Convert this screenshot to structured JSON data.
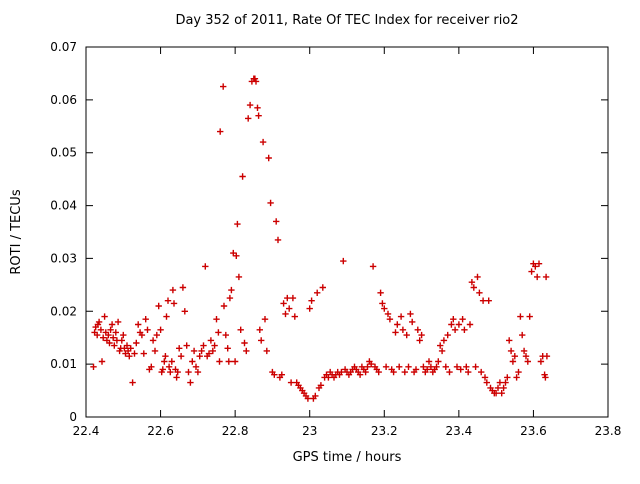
{
  "chart_data": {
    "type": "scatter",
    "title": "Day 352 of 2011, Rate Of TEC Index for receiver rio2",
    "xlabel": "GPS time / hours",
    "ylabel": "ROTI / TECUs",
    "xlim": [
      22.4,
      23.8
    ],
    "ylim": [
      0,
      0.07
    ],
    "x_ticks": [
      {
        "value": 22.4,
        "label": "22.4"
      },
      {
        "value": 22.6,
        "label": "22.6"
      },
      {
        "value": 22.8,
        "label": "22.8"
      },
      {
        "value": 23.0,
        "label": "23"
      },
      {
        "value": 23.2,
        "label": "23.2"
      },
      {
        "value": 23.4,
        "label": "23.4"
      },
      {
        "value": 23.6,
        "label": "23.6"
      },
      {
        "value": 23.8,
        "label": "23.8"
      }
    ],
    "y_ticks": [
      {
        "value": 0.0,
        "label": "0"
      },
      {
        "value": 0.01,
        "label": "0.01"
      },
      {
        "value": 0.02,
        "label": "0.02"
      },
      {
        "value": 0.03,
        "label": "0.03"
      },
      {
        "value": 0.04,
        "label": "0.04"
      },
      {
        "value": 0.05,
        "label": "0.05"
      },
      {
        "value": 0.06,
        "label": "0.06"
      },
      {
        "value": 0.07,
        "label": "0.07"
      }
    ],
    "grid": false,
    "legend": "none",
    "marker": "plus",
    "marker_color": "#cc0000",
    "border_color": "#000000",
    "points": [
      [
        22.42,
        0.0095
      ],
      [
        22.423,
        0.016
      ],
      [
        22.426,
        0.017
      ],
      [
        22.43,
        0.0155
      ],
      [
        22.432,
        0.0175
      ],
      [
        22.435,
        0.018
      ],
      [
        22.44,
        0.0165
      ],
      [
        22.443,
        0.0105
      ],
      [
        22.446,
        0.015
      ],
      [
        22.45,
        0.019
      ],
      [
        22.453,
        0.016
      ],
      [
        22.456,
        0.0145
      ],
      [
        22.46,
        0.0155
      ],
      [
        22.463,
        0.014
      ],
      [
        22.466,
        0.0165
      ],
      [
        22.47,
        0.0175
      ],
      [
        22.473,
        0.015
      ],
      [
        22.476,
        0.0135
      ],
      [
        22.48,
        0.016
      ],
      [
        22.483,
        0.0145
      ],
      [
        22.486,
        0.018
      ],
      [
        22.49,
        0.0125
      ],
      [
        22.493,
        0.013
      ],
      [
        22.496,
        0.0145
      ],
      [
        22.5,
        0.0155
      ],
      [
        22.503,
        0.013
      ],
      [
        22.506,
        0.012
      ],
      [
        22.51,
        0.0135
      ],
      [
        22.513,
        0.0125
      ],
      [
        22.516,
        0.0115
      ],
      [
        22.52,
        0.013
      ],
      [
        22.525,
        0.0065
      ],
      [
        22.53,
        0.012
      ],
      [
        22.535,
        0.014
      ],
      [
        22.54,
        0.0175
      ],
      [
        22.545,
        0.016
      ],
      [
        22.55,
        0.0155
      ],
      [
        22.555,
        0.012
      ],
      [
        22.56,
        0.0185
      ],
      [
        22.565,
        0.0165
      ],
      [
        22.57,
        0.009
      ],
      [
        22.575,
        0.0095
      ],
      [
        22.58,
        0.0145
      ],
      [
        22.585,
        0.0125
      ],
      [
        22.59,
        0.0155
      ],
      [
        22.595,
        0.021
      ],
      [
        22.6,
        0.0165
      ],
      [
        22.603,
        0.0085
      ],
      [
        22.606,
        0.009
      ],
      [
        22.61,
        0.0105
      ],
      [
        22.613,
        0.0115
      ],
      [
        22.616,
        0.019
      ],
      [
        22.62,
        0.022
      ],
      [
        22.623,
        0.0095
      ],
      [
        22.626,
        0.0085
      ],
      [
        22.63,
        0.0105
      ],
      [
        22.633,
        0.024
      ],
      [
        22.636,
        0.0215
      ],
      [
        22.64,
        0.009
      ],
      [
        22.643,
        0.0075
      ],
      [
        22.646,
        0.0085
      ],
      [
        22.65,
        0.013
      ],
      [
        22.655,
        0.0115
      ],
      [
        22.66,
        0.0245
      ],
      [
        22.665,
        0.02
      ],
      [
        22.67,
        0.0135
      ],
      [
        22.675,
        0.0085
      ],
      [
        22.68,
        0.0065
      ],
      [
        22.685,
        0.0105
      ],
      [
        22.69,
        0.0125
      ],
      [
        22.695,
        0.0095
      ],
      [
        22.7,
        0.0085
      ],
      [
        22.705,
        0.0115
      ],
      [
        22.71,
        0.0125
      ],
      [
        22.715,
        0.0135
      ],
      [
        22.72,
        0.0285
      ],
      [
        22.725,
        0.0115
      ],
      [
        22.73,
        0.012
      ],
      [
        22.735,
        0.0145
      ],
      [
        22.74,
        0.0125
      ],
      [
        22.745,
        0.0135
      ],
      [
        22.75,
        0.0185
      ],
      [
        22.755,
        0.016
      ],
      [
        22.758,
        0.0105
      ],
      [
        22.76,
        0.054
      ],
      [
        22.768,
        0.0625
      ],
      [
        22.77,
        0.021
      ],
      [
        22.775,
        0.0155
      ],
      [
        22.78,
        0.013
      ],
      [
        22.783,
        0.0105
      ],
      [
        22.786,
        0.0225
      ],
      [
        22.79,
        0.024
      ],
      [
        22.795,
        0.031
      ],
      [
        22.8,
        0.0105
      ],
      [
        22.803,
        0.0305
      ],
      [
        22.806,
        0.0365
      ],
      [
        22.81,
        0.0265
      ],
      [
        22.815,
        0.0165
      ],
      [
        22.82,
        0.0455
      ],
      [
        22.825,
        0.014
      ],
      [
        22.83,
        0.0125
      ],
      [
        22.835,
        0.0565
      ],
      [
        22.84,
        0.059
      ],
      [
        22.845,
        0.0635
      ],
      [
        22.85,
        0.064
      ],
      [
        22.853,
        0.064
      ],
      [
        22.856,
        0.0635
      ],
      [
        22.86,
        0.0585
      ],
      [
        22.863,
        0.057
      ],
      [
        22.866,
        0.0165
      ],
      [
        22.87,
        0.0145
      ],
      [
        22.875,
        0.052
      ],
      [
        22.88,
        0.0185
      ],
      [
        22.885,
        0.0125
      ],
      [
        22.89,
        0.049
      ],
      [
        22.895,
        0.0405
      ],
      [
        22.9,
        0.0085
      ],
      [
        22.905,
        0.008
      ],
      [
        22.91,
        0.037
      ],
      [
        22.915,
        0.0335
      ],
      [
        22.92,
        0.0075
      ],
      [
        22.925,
        0.008
      ],
      [
        22.93,
        0.0215
      ],
      [
        22.935,
        0.0195
      ],
      [
        22.94,
        0.0225
      ],
      [
        22.945,
        0.0205
      ],
      [
        22.95,
        0.0065
      ],
      [
        22.955,
        0.0225
      ],
      [
        22.96,
        0.019
      ],
      [
        22.965,
        0.0065
      ],
      [
        22.97,
        0.006
      ],
      [
        22.975,
        0.0055
      ],
      [
        22.98,
        0.005
      ],
      [
        22.985,
        0.0045
      ],
      [
        22.99,
        0.004
      ],
      [
        22.995,
        0.0035
      ],
      [
        23.0,
        0.0205
      ],
      [
        23.005,
        0.022
      ],
      [
        23.01,
        0.0035
      ],
      [
        23.015,
        0.004
      ],
      [
        23.02,
        0.0235
      ],
      [
        23.025,
        0.0055
      ],
      [
        23.03,
        0.006
      ],
      [
        23.035,
        0.0245
      ],
      [
        23.04,
        0.0075
      ],
      [
        23.045,
        0.008
      ],
      [
        23.05,
        0.0075
      ],
      [
        23.055,
        0.0085
      ],
      [
        23.06,
        0.008
      ],
      [
        23.065,
        0.0075
      ],
      [
        23.07,
        0.008
      ],
      [
        23.075,
        0.0085
      ],
      [
        23.08,
        0.008
      ],
      [
        23.085,
        0.0085
      ],
      [
        23.09,
        0.0295
      ],
      [
        23.095,
        0.009
      ],
      [
        23.1,
        0.0085
      ],
      [
        23.105,
        0.008
      ],
      [
        23.11,
        0.0085
      ],
      [
        23.115,
        0.009
      ],
      [
        23.12,
        0.0095
      ],
      [
        23.125,
        0.009
      ],
      [
        23.13,
        0.0085
      ],
      [
        23.135,
        0.008
      ],
      [
        23.14,
        0.0095
      ],
      [
        23.145,
        0.009
      ],
      [
        23.15,
        0.0085
      ],
      [
        23.155,
        0.0095
      ],
      [
        23.16,
        0.0105
      ],
      [
        23.165,
        0.01
      ],
      [
        23.17,
        0.0285
      ],
      [
        23.175,
        0.0095
      ],
      [
        23.18,
        0.009
      ],
      [
        23.185,
        0.0085
      ],
      [
        23.19,
        0.0235
      ],
      [
        23.195,
        0.0215
      ],
      [
        23.2,
        0.0205
      ],
      [
        23.205,
        0.0095
      ],
      [
        23.21,
        0.0195
      ],
      [
        23.215,
        0.0185
      ],
      [
        23.22,
        0.009
      ],
      [
        23.225,
        0.0085
      ],
      [
        23.23,
        0.016
      ],
      [
        23.235,
        0.0175
      ],
      [
        23.24,
        0.0095
      ],
      [
        23.245,
        0.019
      ],
      [
        23.25,
        0.0165
      ],
      [
        23.255,
        0.0085
      ],
      [
        23.26,
        0.0155
      ],
      [
        23.265,
        0.0095
      ],
      [
        23.27,
        0.0195
      ],
      [
        23.275,
        0.018
      ],
      [
        23.28,
        0.0085
      ],
      [
        23.285,
        0.009
      ],
      [
        23.29,
        0.0165
      ],
      [
        23.295,
        0.0145
      ],
      [
        23.3,
        0.0155
      ],
      [
        23.305,
        0.0095
      ],
      [
        23.31,
        0.0085
      ],
      [
        23.315,
        0.009
      ],
      [
        23.32,
        0.0105
      ],
      [
        23.325,
        0.0095
      ],
      [
        23.33,
        0.0085
      ],
      [
        23.335,
        0.009
      ],
      [
        23.34,
        0.0095
      ],
      [
        23.345,
        0.0105
      ],
      [
        23.35,
        0.0135
      ],
      [
        23.355,
        0.0125
      ],
      [
        23.36,
        0.0145
      ],
      [
        23.365,
        0.0095
      ],
      [
        23.37,
        0.0155
      ],
      [
        23.375,
        0.0085
      ],
      [
        23.38,
        0.0175
      ],
      [
        23.385,
        0.0185
      ],
      [
        23.39,
        0.0165
      ],
      [
        23.395,
        0.0095
      ],
      [
        23.4,
        0.0175
      ],
      [
        23.405,
        0.009
      ],
      [
        23.41,
        0.0185
      ],
      [
        23.415,
        0.0165
      ],
      [
        23.42,
        0.0095
      ],
      [
        23.425,
        0.0085
      ],
      [
        23.43,
        0.0175
      ],
      [
        23.435,
        0.0255
      ],
      [
        23.44,
        0.0245
      ],
      [
        23.445,
        0.0095
      ],
      [
        23.45,
        0.0265
      ],
      [
        23.455,
        0.0235
      ],
      [
        23.46,
        0.0085
      ],
      [
        23.465,
        0.022
      ],
      [
        23.47,
        0.0075
      ],
      [
        23.475,
        0.0065
      ],
      [
        23.48,
        0.022
      ],
      [
        23.485,
        0.0055
      ],
      [
        23.49,
        0.005
      ],
      [
        23.495,
        0.0045
      ],
      [
        23.5,
        0.0045
      ],
      [
        23.505,
        0.0055
      ],
      [
        23.51,
        0.0065
      ],
      [
        23.515,
        0.0045
      ],
      [
        23.52,
        0.0055
      ],
      [
        23.525,
        0.0065
      ],
      [
        23.53,
        0.0075
      ],
      [
        23.535,
        0.0145
      ],
      [
        23.54,
        0.0125
      ],
      [
        23.545,
        0.0105
      ],
      [
        23.55,
        0.0115
      ],
      [
        23.555,
        0.0075
      ],
      [
        23.56,
        0.0085
      ],
      [
        23.565,
        0.019
      ],
      [
        23.57,
        0.0155
      ],
      [
        23.575,
        0.0125
      ],
      [
        23.58,
        0.0115
      ],
      [
        23.585,
        0.0105
      ],
      [
        23.59,
        0.019
      ],
      [
        23.595,
        0.0275
      ],
      [
        23.6,
        0.029
      ],
      [
        23.605,
        0.0285
      ],
      [
        23.61,
        0.0265
      ],
      [
        23.615,
        0.029
      ],
      [
        23.62,
        0.0105
      ],
      [
        23.625,
        0.0115
      ],
      [
        23.63,
        0.008
      ],
      [
        23.632,
        0.0075
      ],
      [
        23.634,
        0.0265
      ],
      [
        23.636,
        0.0115
      ]
    ]
  }
}
